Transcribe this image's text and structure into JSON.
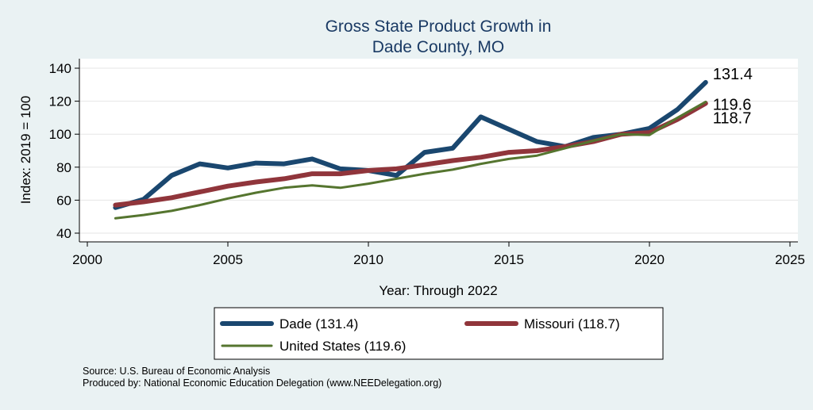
{
  "chart_data": {
    "type": "line",
    "title": "Gross State Product Growth in",
    "subtitle": "Dade County, MO",
    "xlabel": "Year: Through 2022",
    "ylabel": "Index: 2019 = 100",
    "xlim": [
      2000,
      2025
    ],
    "ylim": [
      40,
      140
    ],
    "x_ticks": [
      2000,
      2005,
      2010,
      2015,
      2020,
      2025
    ],
    "y_ticks": [
      40,
      60,
      80,
      100,
      120,
      140
    ],
    "grid": true,
    "x": [
      2001,
      2002,
      2003,
      2004,
      2005,
      2006,
      2007,
      2008,
      2009,
      2010,
      2011,
      2012,
      2013,
      2014,
      2015,
      2016,
      2017,
      2018,
      2019,
      2020,
      2021,
      2022
    ],
    "series": [
      {
        "name": "Dade",
        "legend": "Dade  (131.4)",
        "end_label": "131.4",
        "color": "#1a476f",
        "values": [
          55.5,
          60.5,
          75.0,
          82.0,
          79.5,
          82.5,
          82.0,
          85.0,
          79.0,
          78.0,
          75.0,
          89.0,
          91.5,
          110.5,
          103.0,
          95.5,
          92.5,
          98.0,
          100.0,
          103.5,
          115.0,
          131.4
        ]
      },
      {
        "name": "Missouri",
        "legend": "Missouri (118.7)",
        "end_label": "118.7",
        "color": "#90353b",
        "values": [
          57.0,
          59.0,
          61.5,
          65.0,
          68.5,
          71.0,
          73.0,
          76.0,
          76.0,
          78.0,
          79.0,
          81.5,
          84.0,
          86.0,
          89.0,
          90.0,
          92.5,
          95.5,
          100.0,
          101.0,
          109.0,
          118.7
        ]
      },
      {
        "name": "United States",
        "legend": "United States (119.6)",
        "end_label": "119.6",
        "color": "#55752f",
        "values": [
          49.0,
          51.0,
          53.5,
          57.0,
          61.0,
          64.5,
          67.5,
          69.0,
          67.5,
          70.0,
          73.0,
          76.0,
          78.5,
          82.0,
          85.0,
          87.0,
          91.5,
          96.0,
          100.0,
          99.5,
          110.0,
          119.6
        ]
      }
    ],
    "source": "Source: U.S. Bureau of Economic Analysis",
    "produced_by": "Produced by: National Economic Education Delegation (www.NEEDelegation.org)"
  }
}
